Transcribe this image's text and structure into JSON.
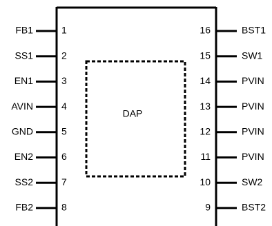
{
  "package": {
    "center_pad_label": "DAP"
  },
  "pins_left": [
    {
      "name": "FB1",
      "number": "1"
    },
    {
      "name": "SS1",
      "number": "2"
    },
    {
      "name": "EN1",
      "number": "3"
    },
    {
      "name": "AVIN",
      "number": "4"
    },
    {
      "name": "GND",
      "number": "5"
    },
    {
      "name": "EN2",
      "number": "6"
    },
    {
      "name": "SS2",
      "number": "7"
    },
    {
      "name": "FB2",
      "number": "8"
    }
  ],
  "pins_right": [
    {
      "name": "BST1",
      "number": "16"
    },
    {
      "name": "SW1",
      "number": "15"
    },
    {
      "name": "PVIN",
      "number": "14"
    },
    {
      "name": "PVIN",
      "number": "13"
    },
    {
      "name": "PVIN",
      "number": "12"
    },
    {
      "name": "PVIN",
      "number": "11"
    },
    {
      "name": "SW2",
      "number": "10"
    },
    {
      "name": "BST2",
      "number": "9"
    }
  ]
}
